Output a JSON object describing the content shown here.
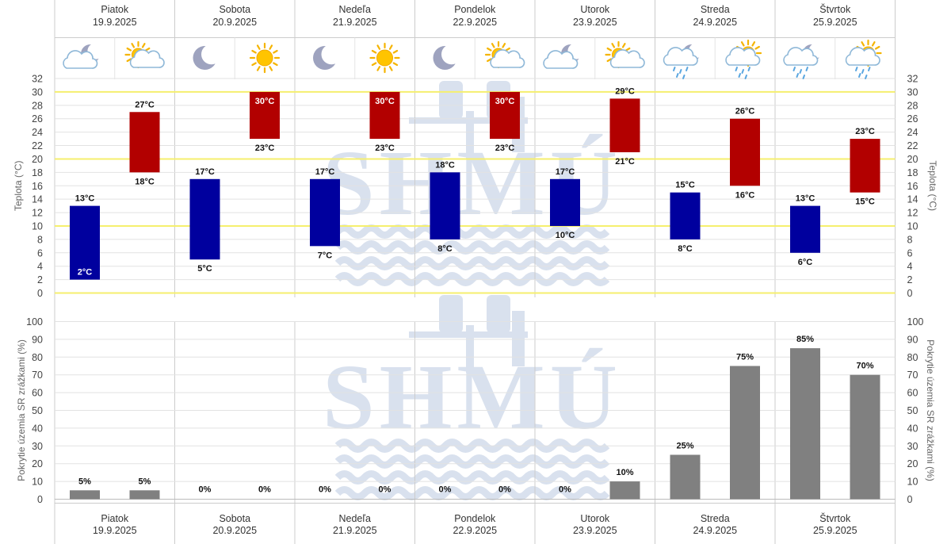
{
  "days": [
    {
      "name": "Piatok",
      "date": "19.9.2025"
    },
    {
      "name": "Sobota",
      "date": "20.9.2025"
    },
    {
      "name": "Nedeľa",
      "date": "21.9.2025"
    },
    {
      "name": "Pondelok",
      "date": "22.9.2025"
    },
    {
      "name": "Utorok",
      "date": "23.9.2025"
    },
    {
      "name": "Streda",
      "date": "24.9.2025"
    },
    {
      "name": "Štvrtok",
      "date": "25.9.2025"
    }
  ],
  "icons": [
    [
      "cloud-moon-icon",
      "sun-cloud-icon"
    ],
    [
      "moon-icon",
      "sun-icon"
    ],
    [
      "moon-icon",
      "sun-icon"
    ],
    [
      "moon-icon",
      "sun-cloud-icon"
    ],
    [
      "cloud-moon-icon",
      "sun-cloud-icon"
    ],
    [
      "rain-cloud-moon-icon",
      "rain-cloud-sun-icon"
    ],
    [
      "rain-cloud-moon-icon",
      "rain-cloud-sun-icon"
    ]
  ],
  "watermark": "SHMÚ",
  "colors": {
    "night": "#00009e",
    "day": "#b20000",
    "precip": "#808080",
    "highlight": "#f5ef6e",
    "grid": "#e2e2e2",
    "divider": "#cccccc"
  },
  "chart_data": [
    {
      "type": "bar",
      "subtype": "floating-range",
      "ylabel": "Teplota (°C)",
      "ylim": [
        0,
        32
      ],
      "yticks": [
        0,
        2,
        4,
        6,
        8,
        10,
        12,
        14,
        16,
        18,
        20,
        22,
        24,
        26,
        28,
        30,
        32
      ],
      "highlight_lines": [
        0,
        10,
        20,
        30
      ],
      "unit": "°C",
      "series": [
        {
          "name": "night",
          "min": [
            2,
            5,
            7,
            8,
            10,
            8,
            6
          ],
          "max": [
            13,
            17,
            17,
            18,
            17,
            15,
            13
          ]
        },
        {
          "name": "day",
          "min": [
            18,
            23,
            23,
            23,
            21,
            16,
            15
          ],
          "max": [
            27,
            30,
            30,
            30,
            29,
            26,
            23
          ]
        }
      ]
    },
    {
      "type": "bar",
      "ylabel": "Pokrytie územia SR zrážkami (%)",
      "ylim": [
        0,
        100
      ],
      "yticks": [
        0,
        10,
        20,
        30,
        40,
        50,
        60,
        70,
        80,
        90,
        100
      ],
      "unit": "%",
      "series": [
        {
          "name": "night",
          "values": [
            5,
            0,
            0,
            0,
            0,
            25,
            85
          ]
        },
        {
          "name": "day",
          "values": [
            5,
            0,
            0,
            0,
            10,
            75,
            70
          ]
        }
      ]
    }
  ]
}
